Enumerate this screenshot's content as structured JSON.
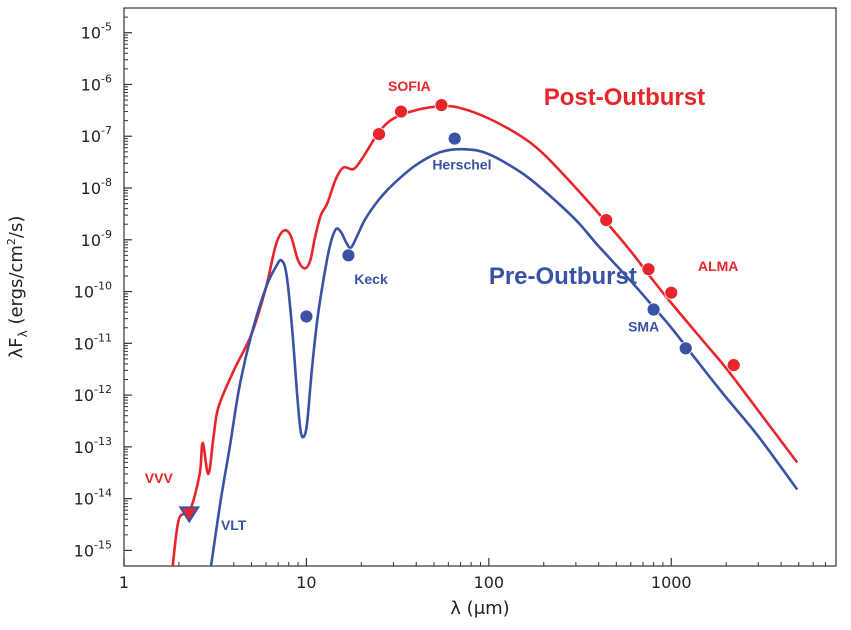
{
  "chart_data": {
    "type": "line",
    "x_scale": "log",
    "y_scale": "log",
    "xlim": [
      1,
      8000
    ],
    "ylim": [
      5e-16,
      3e-05
    ],
    "xlabel": "λ (μm)",
    "ylabel_main": "λF",
    "ylabel_sub": "λ",
    "ylabel_units": " (ergs/cm",
    "ylabel_units_sup": "2",
    "ylabel_units_end": "/s)",
    "x_ticks": [
      {
        "value": 1,
        "label": "1"
      },
      {
        "value": 10,
        "label": "10"
      },
      {
        "value": 100,
        "label": "100"
      },
      {
        "value": 1000,
        "label": "1000"
      }
    ],
    "y_ticks": [
      {
        "exp": -5,
        "base": "10",
        "label": "-5"
      },
      {
        "exp": -6,
        "base": "10",
        "label": "-6"
      },
      {
        "exp": -7,
        "base": "10",
        "label": "-7"
      },
      {
        "exp": -8,
        "base": "10",
        "label": "-8"
      },
      {
        "exp": -9,
        "base": "10",
        "label": "-9"
      },
      {
        "exp": -10,
        "base": "10",
        "label": "-10"
      },
      {
        "exp": -11,
        "base": "10",
        "label": "-11"
      },
      {
        "exp": -12,
        "base": "10",
        "label": "-12"
      },
      {
        "exp": -13,
        "base": "10",
        "label": "-13"
      },
      {
        "exp": -14,
        "base": "10",
        "label": "-14"
      },
      {
        "exp": -15,
        "base": "10",
        "label": "-15"
      }
    ],
    "grid": false,
    "series": [
      {
        "name": "Post-Outburst",
        "color": "#e8252b",
        "curve": [
          [
            1.85,
            5e-16
          ],
          [
            2.0,
            4e-15
          ],
          [
            2.3,
            6e-15
          ],
          [
            2.6,
            3e-14
          ],
          [
            2.7,
            1.2e-13
          ],
          [
            2.9,
            3e-14
          ],
          [
            3.1,
            1.6e-13
          ],
          [
            3.3,
            6e-13
          ],
          [
            4.0,
            3e-12
          ],
          [
            5.0,
            1.5e-11
          ],
          [
            6.0,
            1.2e-10
          ],
          [
            6.8,
            8e-10
          ],
          [
            7.5,
            1.5e-09
          ],
          [
            8.2,
            1.2e-09
          ],
          [
            9.0,
            4e-10
          ],
          [
            9.8,
            2.8e-10
          ],
          [
            10.5,
            4e-10
          ],
          [
            11.2,
            1.2e-09
          ],
          [
            12.0,
            3e-09
          ],
          [
            13.0,
            5e-09
          ],
          [
            14.5,
            1.5e-08
          ],
          [
            16.0,
            2.5e-08
          ],
          [
            18.0,
            2.3e-08
          ],
          [
            20.0,
            3.5e-08
          ],
          [
            25.0,
            1.2e-07
          ],
          [
            30.0,
            2.2e-07
          ],
          [
            40.0,
            3.2e-07
          ],
          [
            55.0,
            3.8e-07
          ],
          [
            70.0,
            3.5e-07
          ],
          [
            100.0,
            2.2e-07
          ],
          [
            150.0,
            1e-07
          ],
          [
            200.0,
            4.5e-08
          ],
          [
            300.0,
            1e-08
          ],
          [
            440.0,
            2.2e-09
          ],
          [
            600.0,
            6e-10
          ],
          [
            800.0,
            1.6e-10
          ],
          [
            1000.0,
            6e-11
          ],
          [
            1500.0,
            1.1e-11
          ],
          [
            2000.0,
            3.3e-12
          ],
          [
            3000.0,
            5e-13
          ],
          [
            4900.0,
            5e-14
          ]
        ],
        "points": [
          [
            2.25,
            5e-15
          ],
          [
            25.0,
            1.1e-07
          ],
          [
            33.0,
            3e-07
          ],
          [
            55.0,
            4e-07
          ],
          [
            440.0,
            2.4e-09
          ],
          [
            750.0,
            2.7e-10
          ],
          [
            1000.0,
            9.5e-11
          ],
          [
            2200.0,
            3.8e-12
          ]
        ]
      },
      {
        "name": "Pre-Outburst",
        "color": "#3a52a4",
        "curve": [
          [
            3.0,
            5e-16
          ],
          [
            3.4,
            1e-14
          ],
          [
            3.8,
            1e-13
          ],
          [
            4.3,
            1.5e-12
          ],
          [
            5.0,
            1.5e-11
          ],
          [
            6.0,
            1.2e-10
          ],
          [
            6.8,
            3e-10
          ],
          [
            7.3,
            4e-10
          ],
          [
            7.8,
            2e-10
          ],
          [
            8.4,
            1.5e-11
          ],
          [
            8.9,
            1e-12
          ],
          [
            9.3,
            2e-13
          ],
          [
            9.7,
            1.6e-13
          ],
          [
            10.1,
            3e-13
          ],
          [
            10.7,
            3e-12
          ],
          [
            11.5,
            3e-11
          ],
          [
            12.5,
            2e-10
          ],
          [
            13.5,
            8e-10
          ],
          [
            14.5,
            1.6e-09
          ],
          [
            15.5,
            1.4e-09
          ],
          [
            16.5,
            9e-10
          ],
          [
            17.5,
            7e-10
          ],
          [
            19.0,
            1.2e-09
          ],
          [
            21.0,
            2.5e-09
          ],
          [
            25.0,
            6e-09
          ],
          [
            30.0,
            1.2e-08
          ],
          [
            40.0,
            2.8e-08
          ],
          [
            55.0,
            5e-08
          ],
          [
            75.0,
            5.6e-08
          ],
          [
            100.0,
            4.5e-08
          ],
          [
            150.0,
            2e-08
          ],
          [
            200.0,
            9e-09
          ],
          [
            300.0,
            2.4e-09
          ],
          [
            400.0,
            7.5e-10
          ],
          [
            600.0,
            1.6e-10
          ],
          [
            800.0,
            5e-11
          ],
          [
            1000.0,
            2e-11
          ],
          [
            1500.0,
            3.2e-12
          ],
          [
            2000.0,
            9e-13
          ],
          [
            3000.0,
            1.6e-13
          ],
          [
            4900.0,
            1.5e-14
          ]
        ],
        "points": [
          [
            2.3,
            5.2e-15
          ],
          [
            10.0,
            3.3e-11
          ],
          [
            17.0,
            5e-10
          ],
          [
            65.0,
            9e-08
          ],
          [
            800.0,
            4.5e-11
          ],
          [
            1200.0,
            8e-12
          ]
        ]
      }
    ],
    "annotations": [
      {
        "text": "Post-Outburst",
        "x": 200,
        "y": 4e-07,
        "color": "#e8252b",
        "size": "big"
      },
      {
        "text": "Pre-Outburst",
        "x": 100,
        "y": 1.4e-10,
        "color": "#3a52a4",
        "size": "big"
      },
      {
        "text": "SOFIA",
        "x": 28,
        "y": 7.5e-07,
        "color": "#e8252b",
        "size": "small"
      },
      {
        "text": "Herschel",
        "x": 49,
        "y": 2.3e-08,
        "color": "#3a52a4",
        "size": "small"
      },
      {
        "text": "Keck",
        "x": 18.3,
        "y": 1.4e-10,
        "color": "#3a52a4",
        "size": "small"
      },
      {
        "text": "ALMA",
        "x": 1400,
        "y": 2.5e-10,
        "color": "#e8252b",
        "size": "small"
      },
      {
        "text": "SMA",
        "x": 580,
        "y": 1.7e-11,
        "color": "#3a52a4",
        "size": "small"
      },
      {
        "text": "VVV",
        "x": 1.3,
        "y": 2e-14,
        "color": "#e8252b",
        "size": "small"
      },
      {
        "text": "VLT",
        "x": 3.4,
        "y": 2.5e-15,
        "color": "#3a52a4",
        "size": "small"
      }
    ],
    "vvv_marker": {
      "x": 2.28,
      "y": 5.2e-15,
      "fill": "#e8252b",
      "edge": "#3a52a4"
    }
  }
}
